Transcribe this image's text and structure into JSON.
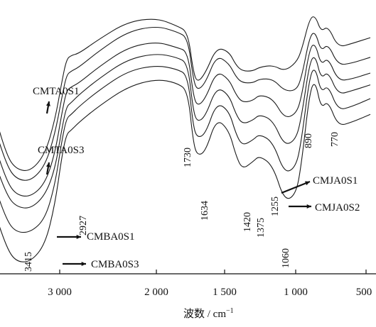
{
  "chart_data": {
    "type": "line",
    "title": "",
    "xlabel": "波数 / cm",
    "xlabel_superscript": "−1",
    "ylabel": "",
    "x_reversed": true,
    "xlim": [
      3900,
      470
    ],
    "x_ticks": [
      {
        "value": 3000,
        "label": "3 000"
      },
      {
        "value": 2000,
        "label": "2 000"
      },
      {
        "value": 1500,
        "label": "1 500"
      },
      {
        "value": 1000,
        "label": "1 000"
      },
      {
        "value": 500,
        "label": "500"
      }
    ],
    "grid": false,
    "series": [
      {
        "points": [
          [
            3900,
            0.85
          ],
          [
            3700,
            0.52
          ],
          [
            3550,
            0.27
          ],
          [
            3450,
            0.2
          ],
          [
            3300,
            0.19
          ],
          [
            3150,
            0.28
          ],
          [
            3050,
            0.45
          ],
          [
            2980,
            0.64
          ],
          [
            2930,
            0.76
          ],
          [
            2880,
            0.78
          ],
          [
            2800,
            0.79
          ],
          [
            2600,
            0.86
          ],
          [
            2300,
            0.95
          ],
          [
            2000,
            0.97
          ],
          [
            1850,
            0.93
          ],
          [
            1770,
            0.9
          ],
          [
            1730,
            0.7
          ],
          [
            1700,
            0.64
          ],
          [
            1640,
            0.69
          ],
          [
            1560,
            0.82
          ],
          [
            1470,
            0.8
          ],
          [
            1420,
            0.73
          ],
          [
            1375,
            0.7
          ],
          [
            1300,
            0.7
          ],
          [
            1255,
            0.72
          ],
          [
            1160,
            0.73
          ],
          [
            1080,
            0.7
          ],
          [
            1000,
            0.74
          ],
          [
            960,
            0.8
          ],
          [
            900,
            0.97
          ],
          [
            860,
            0.98
          ],
          [
            820,
            0.9
          ],
          [
            770,
            0.93
          ],
          [
            700,
            0.82
          ],
          [
            600,
            0.84
          ],
          [
            470,
            0.87
          ]
        ]
      },
      {
        "points": [
          [
            3900,
            0.8
          ],
          [
            3700,
            0.45
          ],
          [
            3550,
            0.22
          ],
          [
            3450,
            0.15
          ],
          [
            3300,
            0.14
          ],
          [
            3150,
            0.22
          ],
          [
            3050,
            0.38
          ],
          [
            2980,
            0.56
          ],
          [
            2930,
            0.68
          ],
          [
            2880,
            0.7
          ],
          [
            2800,
            0.72
          ],
          [
            2600,
            0.8
          ],
          [
            2300,
            0.9
          ],
          [
            2000,
            0.93
          ],
          [
            1850,
            0.9
          ],
          [
            1770,
            0.87
          ],
          [
            1730,
            0.66
          ],
          [
            1700,
            0.6
          ],
          [
            1640,
            0.64
          ],
          [
            1560,
            0.78
          ],
          [
            1470,
            0.74
          ],
          [
            1420,
            0.67
          ],
          [
            1375,
            0.64
          ],
          [
            1300,
            0.64
          ],
          [
            1255,
            0.66
          ],
          [
            1160,
            0.66
          ],
          [
            1080,
            0.6
          ],
          [
            1000,
            0.6
          ],
          [
            960,
            0.66
          ],
          [
            900,
            0.88
          ],
          [
            860,
            0.9
          ],
          [
            820,
            0.8
          ],
          [
            770,
            0.84
          ],
          [
            700,
            0.73
          ],
          [
            600,
            0.74
          ],
          [
            470,
            0.77
          ]
        ]
      },
      {
        "points": [
          [
            3900,
            0.75
          ],
          [
            3700,
            0.36
          ],
          [
            3550,
            0.14
          ],
          [
            3450,
            0.07
          ],
          [
            3300,
            0.06
          ],
          [
            3150,
            0.13
          ],
          [
            3050,
            0.28
          ],
          [
            2980,
            0.48
          ],
          [
            2930,
            0.6
          ],
          [
            2880,
            0.62
          ],
          [
            2800,
            0.64
          ],
          [
            2600,
            0.72
          ],
          [
            2300,
            0.82
          ],
          [
            2000,
            0.85
          ],
          [
            1850,
            0.82
          ],
          [
            1770,
            0.8
          ],
          [
            1730,
            0.58
          ],
          [
            1700,
            0.52
          ],
          [
            1640,
            0.56
          ],
          [
            1560,
            0.7
          ],
          [
            1470,
            0.66
          ],
          [
            1420,
            0.58
          ],
          [
            1375,
            0.54
          ],
          [
            1300,
            0.55
          ],
          [
            1255,
            0.58
          ],
          [
            1160,
            0.56
          ],
          [
            1080,
            0.46
          ],
          [
            1000,
            0.48
          ],
          [
            960,
            0.56
          ],
          [
            900,
            0.82
          ],
          [
            860,
            0.84
          ],
          [
            820,
            0.73
          ],
          [
            770,
            0.77
          ],
          [
            700,
            0.65
          ],
          [
            600,
            0.66
          ],
          [
            470,
            0.69
          ]
        ]
      },
      {
        "points": [
          [
            3900,
            0.68
          ],
          [
            3700,
            0.27
          ],
          [
            3550,
            0.07
          ],
          [
            3450,
            0.01
          ],
          [
            3300,
            0.0
          ],
          [
            3150,
            0.07
          ],
          [
            3050,
            0.2
          ],
          [
            2980,
            0.4
          ],
          [
            2930,
            0.52
          ],
          [
            2880,
            0.54
          ],
          [
            2800,
            0.58
          ],
          [
            2600,
            0.66
          ],
          [
            2300,
            0.76
          ],
          [
            2000,
            0.79
          ],
          [
            1850,
            0.77
          ],
          [
            1770,
            0.74
          ],
          [
            1730,
            0.5
          ],
          [
            1700,
            0.44
          ],
          [
            1640,
            0.47
          ],
          [
            1560,
            0.62
          ],
          [
            1470,
            0.58
          ],
          [
            1420,
            0.48
          ],
          [
            1375,
            0.43
          ],
          [
            1300,
            0.45
          ],
          [
            1255,
            0.48
          ],
          [
            1160,
            0.45
          ],
          [
            1080,
            0.32
          ],
          [
            1000,
            0.35
          ],
          [
            960,
            0.46
          ],
          [
            900,
            0.75
          ],
          [
            860,
            0.78
          ],
          [
            820,
            0.66
          ],
          [
            770,
            0.7
          ],
          [
            700,
            0.58
          ],
          [
            600,
            0.6
          ],
          [
            470,
            0.63
          ]
        ]
      },
      {
        "points": [
          [
            3900,
            0.6
          ],
          [
            3700,
            0.15
          ],
          [
            3550,
            -0.06
          ],
          [
            3450,
            -0.12
          ],
          [
            3300,
            -0.12
          ],
          [
            3150,
            -0.05
          ],
          [
            3050,
            0.12
          ],
          [
            2980,
            0.34
          ],
          [
            2930,
            0.46
          ],
          [
            2880,
            0.48
          ],
          [
            2800,
            0.52
          ],
          [
            2600,
            0.6
          ],
          [
            2300,
            0.7
          ],
          [
            2000,
            0.73
          ],
          [
            1850,
            0.71
          ],
          [
            1770,
            0.68
          ],
          [
            1730,
            0.42
          ],
          [
            1700,
            0.36
          ],
          [
            1640,
            0.38
          ],
          [
            1560,
            0.54
          ],
          [
            1470,
            0.5
          ],
          [
            1420,
            0.38
          ],
          [
            1375,
            0.32
          ],
          [
            1300,
            0.35
          ],
          [
            1255,
            0.38
          ],
          [
            1160,
            0.34
          ],
          [
            1080,
            0.18
          ],
          [
            1000,
            0.21
          ],
          [
            960,
            0.34
          ],
          [
            900,
            0.68
          ],
          [
            860,
            0.72
          ],
          [
            820,
            0.59
          ],
          [
            770,
            0.63
          ],
          [
            700,
            0.5
          ],
          [
            600,
            0.52
          ],
          [
            470,
            0.56
          ]
        ]
      },
      {
        "points": [
          [
            3900,
            0.5
          ],
          [
            3700,
            0.02
          ],
          [
            3550,
            -0.2
          ],
          [
            3450,
            -0.27
          ],
          [
            3300,
            -0.27
          ],
          [
            3150,
            -0.18
          ],
          [
            3050,
            0.02
          ],
          [
            2980,
            0.26
          ],
          [
            2930,
            0.38
          ],
          [
            2880,
            0.4
          ],
          [
            2800,
            0.44
          ],
          [
            2600,
            0.52
          ],
          [
            2300,
            0.62
          ],
          [
            2000,
            0.66
          ],
          [
            1850,
            0.64
          ],
          [
            1770,
            0.6
          ],
          [
            1730,
            0.34
          ],
          [
            1700,
            0.27
          ],
          [
            1640,
            0.29
          ],
          [
            1560,
            0.46
          ],
          [
            1470,
            0.4
          ],
          [
            1420,
            0.27
          ],
          [
            1375,
            0.2
          ],
          [
            1300,
            0.24
          ],
          [
            1255,
            0.27
          ],
          [
            1160,
            0.22
          ],
          [
            1080,
            0.04
          ],
          [
            1000,
            0.07
          ],
          [
            960,
            0.22
          ],
          [
            900,
            0.6
          ],
          [
            860,
            0.65
          ],
          [
            820,
            0.51
          ],
          [
            770,
            0.55
          ],
          [
            700,
            0.42
          ],
          [
            600,
            0.44
          ],
          [
            470,
            0.48
          ]
        ]
      }
    ],
    "annotations": [
      {
        "text": "CMTA0S1",
        "x": 3350,
        "y": 0.24
      },
      {
        "text": "CMTA0S3",
        "x": 3350,
        "y": 0.04
      },
      {
        "text": "CMBA0S1",
        "x": 2590,
        "y": -0.16
      },
      {
        "text": "CMBA0S3",
        "x": 2490,
        "y": -0.26
      },
      {
        "text": "CMJA0S1",
        "x": 745,
        "y": 0.2
      },
      {
        "text": "CMJA0S2",
        "x": 700,
        "y": 0.11
      }
    ],
    "peak_labels": [
      "3415",
      "2927",
      "1730",
      "1634",
      "1420",
      "1375",
      "1255",
      "1060",
      "890",
      "770"
    ]
  }
}
